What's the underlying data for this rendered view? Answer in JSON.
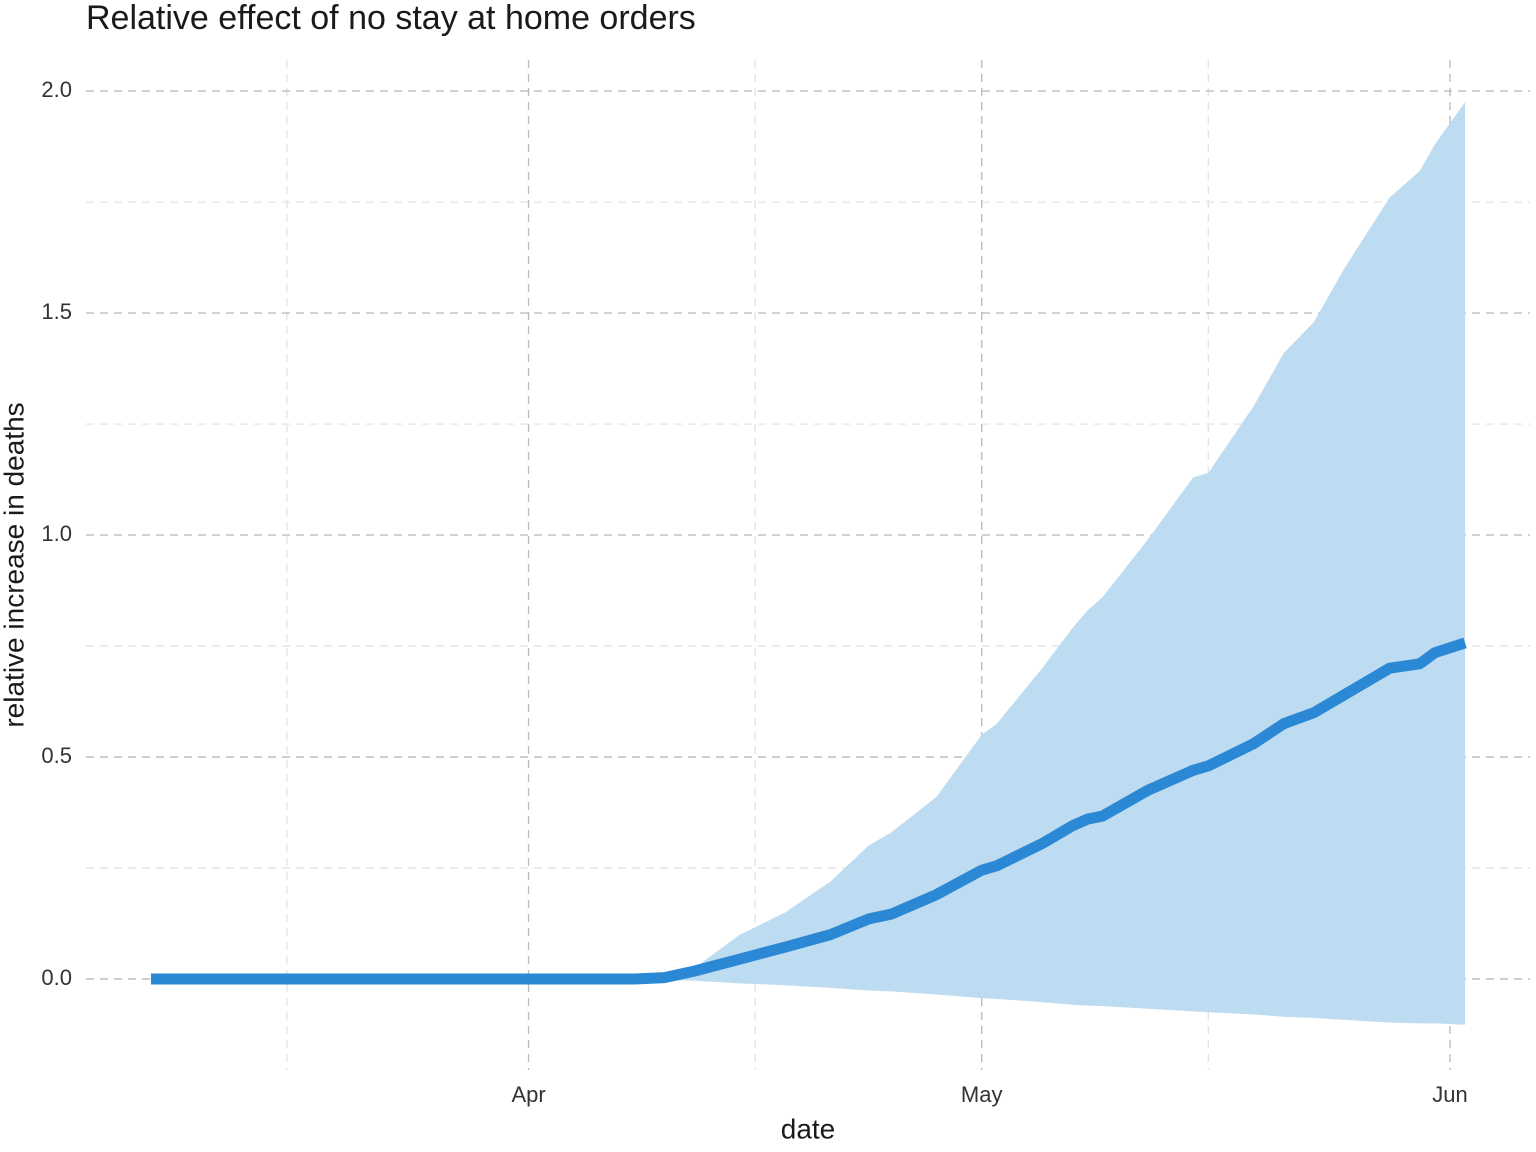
{
  "chart_data": {
    "type": "line",
    "title": "Relative effect of no stay at home orders",
    "x_label": "date",
    "y_label": "relative increase in deaths",
    "x": [
      6,
      38,
      40,
      42,
      45,
      48,
      51,
      53.5,
      55,
      58,
      61,
      62,
      65,
      67,
      68,
      69,
      72,
      75,
      76,
      79,
      81,
      83,
      85,
      88,
      90,
      91,
      93
    ],
    "values": [
      0,
      0,
      0.003,
      0.018,
      0.045,
      0.072,
      0.1,
      0.135,
      0.146,
      0.19,
      0.245,
      0.255,
      0.305,
      0.345,
      0.36,
      0.367,
      0.425,
      0.47,
      0.48,
      0.53,
      0.575,
      0.6,
      0.64,
      0.7,
      0.71,
      0.735,
      0.757
    ],
    "lower": [
      0,
      0,
      -0.002,
      -0.004,
      -0.01,
      -0.014,
      -0.02,
      -0.026,
      -0.028,
      -0.035,
      -0.043,
      -0.045,
      -0.052,
      -0.058,
      -0.06,
      -0.061,
      -0.067,
      -0.073,
      -0.075,
      -0.08,
      -0.085,
      -0.088,
      -0.092,
      -0.098,
      -0.1,
      -0.1,
      -0.103
    ],
    "upper": [
      0,
      0,
      0.005,
      0.025,
      0.1,
      0.15,
      0.22,
      0.3,
      0.33,
      0.41,
      0.55,
      0.575,
      0.7,
      0.79,
      0.83,
      0.86,
      0.99,
      1.13,
      1.14,
      1.29,
      1.41,
      1.48,
      1.6,
      1.76,
      1.82,
      1.88,
      1.975
    ],
    "color": "#2a88d4",
    "band_color": "#bedcf1",
    "xlim": [
      1.7,
      97.3
    ],
    "xticks": [
      {
        "value": 31,
        "label": "Apr"
      },
      {
        "value": 61,
        "label": "May"
      },
      {
        "value": 92,
        "label": "Jun"
      }
    ],
    "xminor": [
      15,
      46,
      76
    ],
    "ylim": [
      -0.205,
      2.07
    ],
    "yticks": [
      {
        "value": 0,
        "label": "0.0"
      },
      0.5,
      {
        "value": 1,
        "label": "1.0"
      },
      1.5,
      {
        "value": 2,
        "label": "2.0"
      }
    ],
    "yminor": [
      0.25,
      0.75,
      1.25,
      1.75
    ],
    "grid": true
  }
}
